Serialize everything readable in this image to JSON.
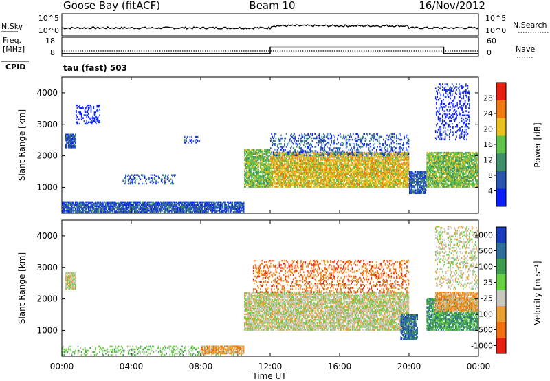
{
  "header": {
    "station": "Goose Bay (fitACF)",
    "beam": "Beam 10",
    "date": "16/Nov/2012"
  },
  "noise_panel": {
    "left_label": "N.Sky",
    "left_ticks": [
      "10^5",
      "10^0"
    ],
    "right_ticks": [
      "10^5",
      "10^0"
    ],
    "right_label": "N.Search"
  },
  "freq_panel": {
    "left_label_1": "Freq.",
    "left_label_2": "[MHz]",
    "left_ticks": [
      "18",
      "8"
    ],
    "right_ticks": [
      "60",
      "0"
    ],
    "right_label": "Nave",
    "cpid_label": "CPID",
    "mode_label": "tau (fast) 503"
  },
  "x_axis": {
    "label": "Time UT",
    "ticks": [
      "00:00",
      "04:00",
      "08:00",
      "12:00",
      "16:00",
      "20:00",
      "00:00"
    ]
  },
  "chart_data": [
    {
      "type": "heatmap",
      "title": "Power",
      "xlabel": "Time UT",
      "ylabel": "Slant Range [km]",
      "x_range_hours": [
        0,
        24
      ],
      "ylim": [
        180,
        4500
      ],
      "y_ticks": [
        1000,
        2000,
        3000,
        4000
      ],
      "colorbar_label": "Power [dB]",
      "colorbar_ticks": [
        "4",
        "8",
        "12",
        "16",
        "20",
        "24",
        "28"
      ],
      "colorbar_colors": [
        "#0a1eff",
        "#2a55b0",
        "#3e8f6a",
        "#5fc24a",
        "#e8c020",
        "#f07a10",
        "#e82010"
      ],
      "regions": [
        {
          "t": [
            0.2,
            0.8
          ],
          "r": [
            2250,
            2700
          ],
          "level": 1
        },
        {
          "t": [
            0.8,
            2.2
          ],
          "r": [
            3000,
            3600
          ],
          "level": 0,
          "sparse": true
        },
        {
          "t": [
            3.5,
            6.5
          ],
          "r": [
            1100,
            1400
          ],
          "level": 1,
          "sparse": true
        },
        {
          "t": [
            7.0,
            8.0
          ],
          "r": [
            2400,
            2600
          ],
          "level": 1,
          "sparse": true
        },
        {
          "t": [
            0.0,
            10.5
          ],
          "r": [
            200,
            550
          ],
          "level": 1
        },
        {
          "t": [
            10.5,
            12.0
          ],
          "r": [
            1000,
            2200
          ],
          "level": 3
        },
        {
          "t": [
            12.0,
            20.0
          ],
          "r": [
            1000,
            2100
          ],
          "level": 4
        },
        {
          "t": [
            12.0,
            20.0
          ],
          "r": [
            2000,
            2700
          ],
          "level": 1,
          "sparse": true
        },
        {
          "t": [
            20.0,
            21.0
          ],
          "r": [
            800,
            1500
          ],
          "level": 1
        },
        {
          "t": [
            21.0,
            24.0
          ],
          "r": [
            1000,
            2100
          ],
          "level": 3
        },
        {
          "t": [
            21.5,
            23.5
          ],
          "r": [
            2500,
            4300
          ],
          "level": 0,
          "sparse": true
        }
      ]
    },
    {
      "type": "heatmap",
      "title": "Velocity",
      "xlabel": "Time UT",
      "ylabel": "Slant Range [km]",
      "x_range_hours": [
        0,
        24
      ],
      "ylim": [
        180,
        4500
      ],
      "y_ticks": [
        1000,
        2000,
        3000,
        4000
      ],
      "colorbar_label": "Velocity [m s⁻¹]",
      "colorbar_ticks": [
        "1000",
        "500",
        "100",
        "25",
        "-25",
        "-100",
        "-500",
        "-1000"
      ],
      "colorbar_colors": [
        "#1a3cbf",
        "#2e6e9a",
        "#3e9c4e",
        "#66d040",
        "#c8c8c0",
        "#e8a030",
        "#f07010",
        "#e82010"
      ],
      "regions": [
        {
          "t": [
            0.2,
            0.8
          ],
          "r": [
            2300,
            2800
          ],
          "level": 4
        },
        {
          "t": [
            0.0,
            10.5
          ],
          "r": [
            200,
            500
          ],
          "level": 3,
          "sparse": true
        },
        {
          "t": [
            8.0,
            10.5
          ],
          "r": [
            250,
            500
          ],
          "level": 5
        },
        {
          "t": [
            10.5,
            20.0
          ],
          "r": [
            1000,
            2200
          ],
          "level": 4
        },
        {
          "t": [
            11.0,
            20.0
          ],
          "r": [
            2200,
            3200
          ],
          "level": 6,
          "sparse": true
        },
        {
          "t": [
            19.5,
            20.5
          ],
          "r": [
            700,
            1500
          ],
          "level": 1
        },
        {
          "t": [
            21.0,
            24.0
          ],
          "r": [
            1000,
            2000
          ],
          "level": 2
        },
        {
          "t": [
            21.5,
            24.0
          ],
          "r": [
            1600,
            2200
          ],
          "level": 5
        },
        {
          "t": [
            21.5,
            24.0
          ],
          "r": [
            2300,
            4300
          ],
          "level": 4,
          "sparse": true
        }
      ]
    }
  ]
}
